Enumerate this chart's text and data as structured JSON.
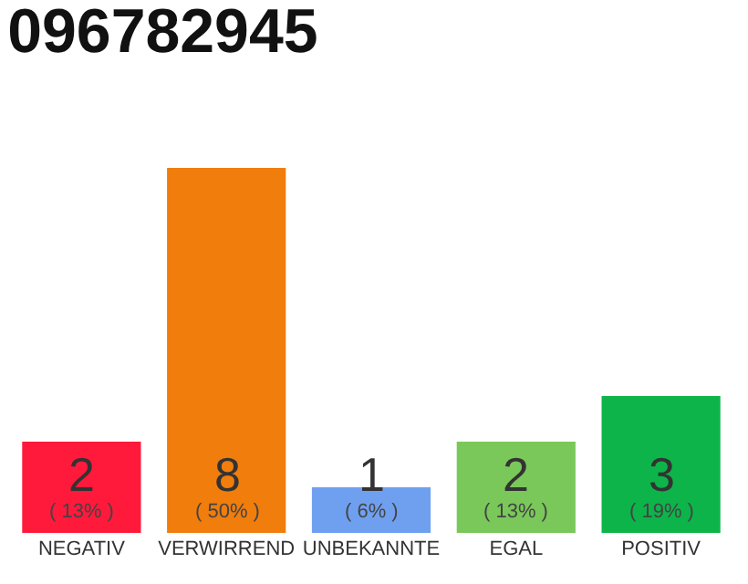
{
  "chart_data": {
    "type": "bar",
    "title": "096782945",
    "categories": [
      "NEGATIV",
      "VERWIRREND",
      "UNBEKANNTE",
      "EGAL",
      "POSITIV"
    ],
    "values": [
      2,
      8,
      1,
      2,
      3
    ],
    "colors": [
      "#ff1a3c",
      "#f07d0c",
      "#6fa0f0",
      "#7ac85a",
      "#0db44a"
    ],
    "value_labels": [
      "2\n( 13% )",
      "8\n( 50% )",
      "1\n( 6% )",
      "2\n( 13% )",
      "3\n( 19% )"
    ],
    "grid": false,
    "legend": false,
    "tick_labels": "x"
  }
}
